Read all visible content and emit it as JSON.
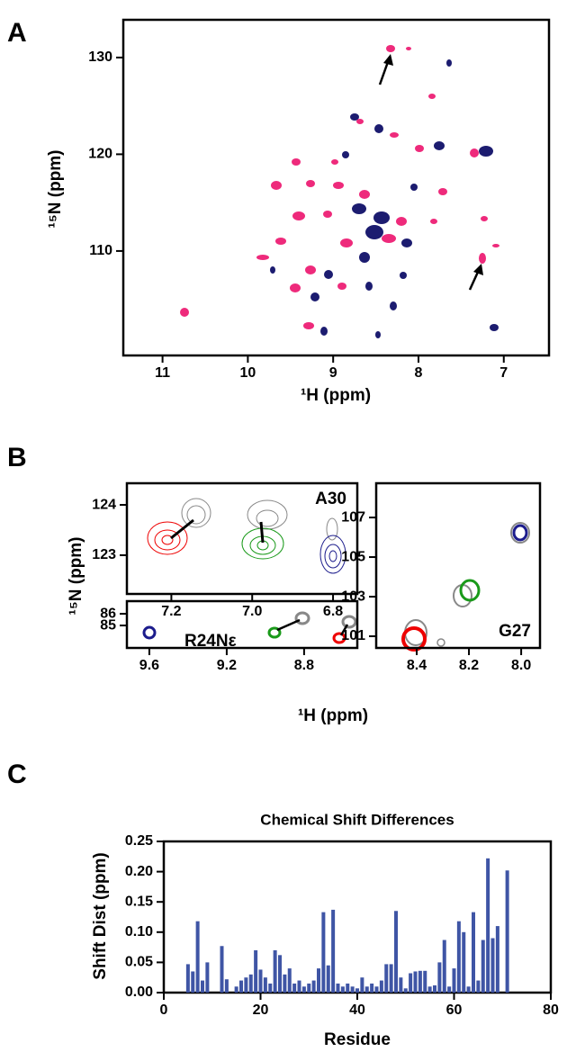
{
  "panel_labels": [
    "A",
    "B",
    "C"
  ],
  "panel_a": {
    "xlabel": "¹H (ppm)",
    "ylabel": "¹⁵N (ppm)",
    "xlim": [
      11.46,
      6.47
    ],
    "ylim": [
      99.2,
      133.9
    ],
    "xticks": [
      11,
      10,
      9,
      8,
      7
    ],
    "yticks": [
      110,
      120,
      130
    ]
  },
  "panel_b": {
    "xlabel": "¹H (ppm)",
    "ylabel": "¹⁵N (ppm)",
    "a30": {
      "label": "A30",
      "xlim": [
        7.31,
        6.74
      ],
      "ylim": [
        122.23,
        124.43
      ],
      "xticks": [
        7.2,
        {
          "value": 7,
          "label": "7.0"
        },
        6.8
      ],
      "yticks": [
        123,
        124
      ]
    },
    "r24": {
      "label": "R24Nε",
      "xlim": [
        9.716,
        8.525
      ],
      "ylim": [
        83.08,
        87.08
      ],
      "xticks": [
        9.6,
        9.2,
        8.8
      ],
      "yticks": [
        85,
        86
      ]
    },
    "g27": {
      "label": "G27",
      "xlim": [
        8.555,
        7.928
      ],
      "ylim": [
        100.41,
        108.73
      ],
      "xticks": [
        8.4,
        8.2,
        {
          "value": 8,
          "label": "8.0"
        }
      ],
      "yticks": [
        101,
        103,
        105,
        107
      ]
    }
  },
  "chart_data": {
    "type": "bar",
    "title": "Chemical Shift Differences",
    "xlabel": "Residue",
    "ylabel": "Shift Dist (ppm)",
    "color": "#3f55a5",
    "x": [
      5,
      6,
      7,
      8,
      9,
      12,
      13,
      15,
      16,
      17,
      18,
      19,
      20,
      21,
      22,
      23,
      24,
      25,
      26,
      27,
      28,
      29,
      30,
      31,
      32,
      33,
      34,
      35,
      36,
      37,
      38,
      39,
      40,
      41,
      42,
      43,
      44,
      45,
      46,
      47,
      48,
      49,
      50,
      51,
      52,
      53,
      54,
      55,
      56,
      57,
      58,
      59,
      60,
      61,
      62,
      63,
      64,
      65,
      66,
      67,
      68,
      69,
      71
    ],
    "values": [
      0.047,
      0.035,
      0.118,
      0.02,
      0.05,
      0.077,
      0.022,
      0.01,
      0.02,
      0.025,
      0.03,
      0.07,
      0.038,
      0.025,
      0.015,
      0.07,
      0.062,
      0.03,
      0.04,
      0.015,
      0.02,
      0.01,
      0.015,
      0.02,
      0.04,
      0.133,
      0.045,
      0.137,
      0.015,
      0.01,
      0.015,
      0.01,
      0.007,
      0.025,
      0.01,
      0.015,
      0.01,
      0.02,
      0.047,
      0.047,
      0.135,
      0.025,
      0.007,
      0.032,
      0.035,
      0.036,
      0.036,
      0.01,
      0.012,
      0.05,
      0.087,
      0.01,
      0.04,
      0.118,
      0.1,
      0.01,
      0.133,
      0.02,
      0.087,
      0.222,
      0.09,
      0.11,
      0.202
    ],
    "xlim": [
      0,
      80
    ],
    "ylim": [
      0,
      0.25
    ],
    "xticks": [
      0,
      20,
      40,
      60,
      80
    ],
    "yticks": [
      {
        "value": 0,
        "label": "0.00"
      },
      0.05,
      {
        "value": 0.1,
        "label": "0.10"
      },
      0.15,
      {
        "value": 0.2,
        "label": "0.20"
      },
      0.25
    ]
  }
}
